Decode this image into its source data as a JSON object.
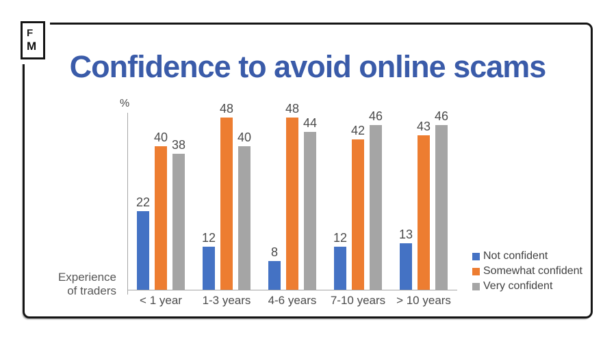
{
  "logo": {
    "top": "F",
    "bottom": "M"
  },
  "chart_data": {
    "type": "bar",
    "title": "Confidence to avoid online scams",
    "categories": [
      "< 1 year",
      "1-3 years",
      "4-6 years",
      "7-10 years",
      "> 10 years"
    ],
    "series": [
      {
        "name": "Not confident",
        "color": "#4472C4",
        "values": [
          22,
          12,
          8,
          12,
          13
        ]
      },
      {
        "name": "Somewhat confident",
        "color": "#ED7D31",
        "values": [
          40,
          48,
          48,
          42,
          43
        ]
      },
      {
        "name": "Very confident",
        "color": "#A5A5A5",
        "values": [
          38,
          40,
          44,
          46,
          46
        ]
      }
    ],
    "ylabel": "%",
    "xlabel": "Experience of traders",
    "x_axis_title_lines": [
      "Experience",
      "of traders"
    ],
    "ylim": [
      0,
      50
    ],
    "grid": false,
    "legend_position": "right",
    "value_labels": true
  },
  "colors": {
    "title": "#3A5BA9",
    "not_confident": "#4472C4",
    "somewhat_confident": "#ED7D31",
    "very_confident": "#A5A5A5",
    "label_text": "#4A4A4A",
    "axis_line": "#A6A6A6",
    "frame": "#151515"
  }
}
